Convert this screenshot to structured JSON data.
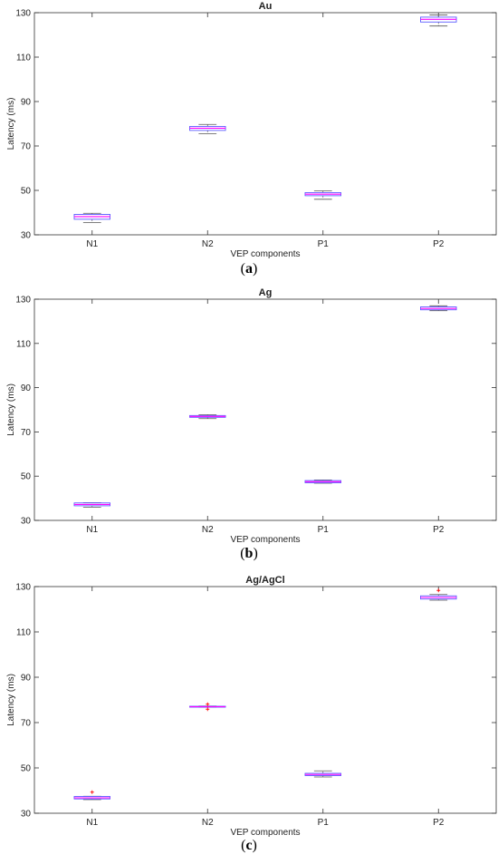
{
  "chart_data": [
    {
      "type": "box",
      "title": "Au",
      "xlabel": "VEP components",
      "ylabel": "Latency (ms)",
      "ylim": [
        30,
        130
      ],
      "yticks": [
        30,
        50,
        70,
        90,
        110,
        130
      ],
      "categories": [
        "N1",
        "N2",
        "P1",
        "P2"
      ],
      "boxes": [
        {
          "label": "N1",
          "whisker_low": 35.5,
          "q1": 37.0,
          "median": 38.2,
          "q3": 39.2,
          "whisker_high": 39.7,
          "outliers": []
        },
        {
          "label": "N2",
          "whisker_low": 75.5,
          "q1": 77.0,
          "median": 78.0,
          "q3": 78.8,
          "whisker_high": 79.7,
          "outliers": []
        },
        {
          "label": "P1",
          "whisker_low": 46.0,
          "q1": 47.6,
          "median": 48.3,
          "q3": 49.0,
          "whisker_high": 49.8,
          "outliers": []
        },
        {
          "label": "P2",
          "whisker_low": 124.0,
          "q1": 125.8,
          "median": 127.0,
          "q3": 128.0,
          "whisker_high": 129.0,
          "outliers": []
        }
      ],
      "caption": "a"
    },
    {
      "type": "box",
      "title": "Ag",
      "xlabel": "VEP components",
      "ylabel": "Latency (ms)",
      "ylim": [
        30,
        130
      ],
      "yticks": [
        30,
        50,
        70,
        90,
        110,
        130
      ],
      "categories": [
        "N1",
        "N2",
        "P1",
        "P2"
      ],
      "boxes": [
        {
          "label": "N1",
          "whisker_low": 36.0,
          "q1": 36.6,
          "median": 37.2,
          "q3": 37.9,
          "whisker_high": 38.0,
          "outliers": []
        },
        {
          "label": "N2",
          "whisker_low": 76.0,
          "q1": 76.6,
          "median": 77.0,
          "q3": 77.4,
          "whisker_high": 77.8,
          "outliers": []
        },
        {
          "label": "P1",
          "whisker_low": 46.8,
          "q1": 47.0,
          "median": 47.5,
          "q3": 48.0,
          "whisker_high": 48.3,
          "outliers": []
        },
        {
          "label": "P2",
          "whisker_low": 124.8,
          "q1": 125.2,
          "median": 125.8,
          "q3": 126.5,
          "whisker_high": 127.0,
          "outliers": []
        }
      ],
      "caption": "b"
    },
    {
      "type": "box",
      "title": "Ag/AgCl",
      "xlabel": "VEP components",
      "ylabel": "Latency (ms)",
      "ylim": [
        30,
        130
      ],
      "yticks": [
        30,
        50,
        70,
        90,
        110,
        130
      ],
      "categories": [
        "N1",
        "N2",
        "P1",
        "P2"
      ],
      "boxes": [
        {
          "label": "N1",
          "whisker_low": 36.0,
          "q1": 36.3,
          "median": 36.8,
          "q3": 37.4,
          "whisker_high": 37.5,
          "outliers": [
            39.3
          ]
        },
        {
          "label": "N2",
          "whisker_low": 76.8,
          "q1": 76.9,
          "median": 77.0,
          "q3": 77.2,
          "whisker_high": 77.3,
          "outliers": [
            78.1,
            75.9
          ]
        },
        {
          "label": "P1",
          "whisker_low": 46.0,
          "q1": 46.6,
          "median": 47.1,
          "q3": 47.6,
          "whisker_high": 48.7,
          "outliers": []
        },
        {
          "label": "P2",
          "whisker_low": 124.0,
          "q1": 124.5,
          "median": 125.2,
          "q3": 125.9,
          "whisker_high": 126.5,
          "outliers": [
            128.3
          ]
        }
      ],
      "caption": "c"
    }
  ],
  "colors": {
    "box": "#5b5bff",
    "median": "#ff00ff",
    "whisker": "#555555",
    "outlier": "#ff0000",
    "axis": "#333333",
    "text": "#222222"
  }
}
